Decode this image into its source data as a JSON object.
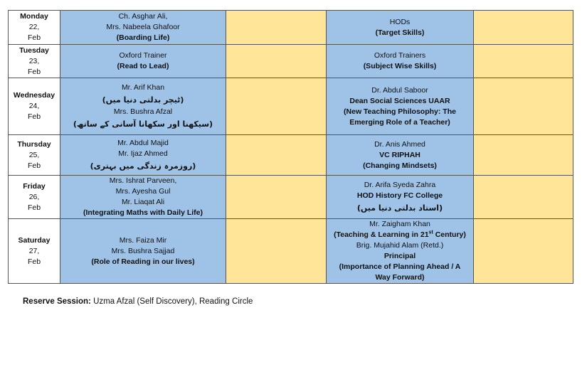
{
  "schedule": [
    {
      "day": "Monday",
      "date": "22,",
      "month": "Feb",
      "height": 48,
      "session1": [
        {
          "t": "Ch. Asghar Ali,"
        },
        {
          "t": "Mrs. Nabeela Ghafoor"
        },
        {
          "t": "(Boarding Life)",
          "s": "b"
        }
      ],
      "session2": [
        {
          "t": "HODs"
        },
        {
          "t": "(Target Skills)",
          "s": "b"
        }
      ]
    },
    {
      "day": "Tuesday",
      "date": "23,",
      "month": "Feb",
      "height": 47,
      "session1": [
        {
          "t": "Oxford Trainer"
        },
        {
          "t": "(Read to Lead)",
          "s": "b"
        }
      ],
      "session2": [
        {
          "t": "Oxford  Trainers"
        },
        {
          "t": "(Subject Wise Skills)",
          "s": "b"
        }
      ]
    },
    {
      "day": "Wednesday",
      "date": "24,",
      "month": "Feb",
      "height": 80,
      "session1": [
        {
          "t": "Mr. Arif Khan"
        },
        {
          "t": "(ٹیچر بدلتی دنیا میں)",
          "s": "ur"
        },
        {
          "t": "Mrs. Bushra Afzal"
        },
        {
          "t": "(سیکھنا اور سکھانا آسانی کے ساتھ)",
          "s": "ur"
        }
      ],
      "session2": [
        {
          "t": "Dr. Abdul Saboor"
        },
        {
          "t": "Dean Social Sciences UAAR",
          "s": "b"
        },
        {
          "t": "(New Teaching Philosophy: The",
          "s": "b"
        },
        {
          "t": "Emerging Role of a Teacher)",
          "s": "b"
        }
      ]
    },
    {
      "day": "Thursday",
      "date": "25,",
      "month": "Feb",
      "height": 57,
      "session1": [
        {
          "t": "Mr. Abdul Majid"
        },
        {
          "t": "Mr. Ijaz Ahmed"
        },
        {
          "t": "(روزمرہ زندگی میں بہتری)",
          "s": "ur"
        }
      ],
      "session2": [
        {
          "t": "Dr. Anis Ahmed"
        },
        {
          "t": "VC RIPHAH",
          "s": "b"
        },
        {
          "t": "(Changing Mindsets)",
          "s": "b"
        }
      ]
    },
    {
      "day": "Friday",
      "date": "26,",
      "month": "Feb",
      "height": 60,
      "session1": [
        {
          "t": "Mrs. Ishrat Parveen,"
        },
        {
          "t": "Mrs. Ayesha Gul"
        },
        {
          "t": "Mr. Liaqat Ali"
        },
        {
          "t": "(Integrating Maths with Daily Life)",
          "s": "b"
        }
      ],
      "session2": [
        {
          "t": "Dr. Arifa Syeda Zahra"
        },
        {
          "t": "HOD History FC College",
          "s": "b"
        },
        {
          "t": "(استاد بدلتی دنیا میں)",
          "s": "ur"
        }
      ]
    },
    {
      "day": "Saturday",
      "date": "27,",
      "month": "Feb",
      "height": 91,
      "session1": [
        {
          "t": "Mrs. Faiza Mir"
        },
        {
          "t": "Mrs. Bushra Sajjad"
        },
        {
          "t": "(Role of Reading in our lives)",
          "s": "b"
        }
      ],
      "session2": [
        {
          "t": "Mr. Zaigham Khan"
        },
        {
          "t": "(Teaching & Learning in 21",
          "sup": "st",
          "post": " Century)",
          "s": "b"
        },
        {
          "t": "Brig. Mujahid Alam (Retd.)"
        },
        {
          "t": "Principal",
          "s": "b"
        },
        {
          "t": "(Importance of Planning Ahead / A",
          "s": "b"
        },
        {
          "t": "Way Forward)",
          "s": "b"
        }
      ]
    }
  ],
  "colors": {
    "session": "#9fc3e7",
    "empty": "#ffe598"
  },
  "reserve": {
    "label": "Reserve Session:",
    "text": " Uzma Afzal (Self Discovery), Reading Circle"
  }
}
